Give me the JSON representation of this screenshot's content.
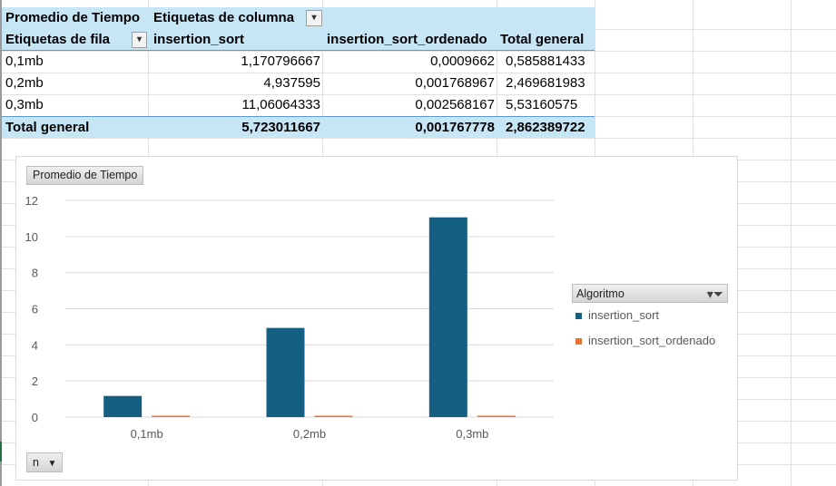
{
  "pivot": {
    "value_field": "Promedio de Tiempo",
    "column_labels": "Etiquetas de columna",
    "row_labels": "Etiquetas de fila",
    "col_headers": [
      "insertion_sort",
      "insertion_sort_ordenado",
      "Total general"
    ],
    "rows": [
      {
        "label": "0,1mb",
        "values": [
          "1,170796667",
          "0,0009662",
          "0,585881433"
        ]
      },
      {
        "label": "0,2mb",
        "values": [
          "4,937595",
          "0,001768967",
          "2,469681983"
        ]
      },
      {
        "label": "0,3mb",
        "values": [
          "11,06064333",
          "0,002568167",
          "5,53160575"
        ]
      }
    ],
    "total": {
      "label": "Total general",
      "values": [
        "5,723011667",
        "0,001767778",
        "2,862389722"
      ]
    }
  },
  "chart": {
    "value_field_button": "Promedio de Tiempo",
    "legend_title": "Algoritmo",
    "axis_field_button": "n"
  },
  "chart_data": {
    "type": "bar",
    "categories": [
      "0,1mb",
      "0,2mb",
      "0,3mb"
    ],
    "series": [
      {
        "name": "insertion_sort",
        "values": [
          1.170796667,
          4.937595,
          11.06064333
        ],
        "color": "#156082"
      },
      {
        "name": "insertion_sort_ordenado",
        "values": [
          0.0009662,
          0.001768967,
          0.002568167
        ],
        "color": "#e97132"
      }
    ],
    "yticks": [
      "0",
      "2",
      "4",
      "6",
      "8",
      "10",
      "12"
    ],
    "ylim": [
      0,
      12
    ],
    "grid": true,
    "legend_position": "right"
  }
}
